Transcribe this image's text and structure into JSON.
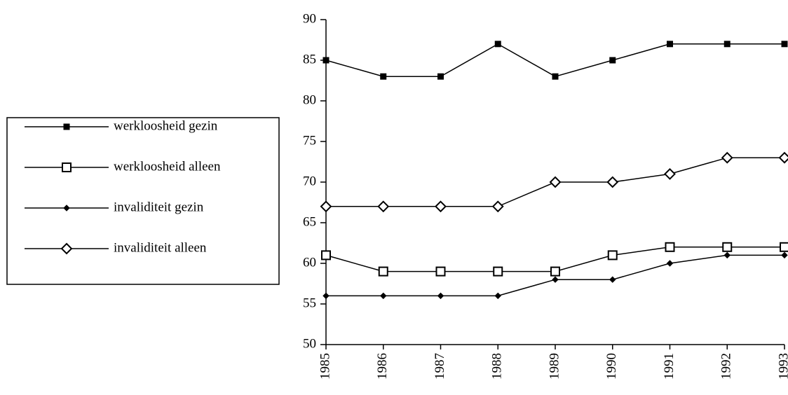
{
  "chart_data": {
    "type": "line",
    "categories": [
      "1985",
      "1986",
      "1987",
      "1988",
      "1989",
      "1990",
      "1991",
      "1992",
      "1993"
    ],
    "series": [
      {
        "name": "werkloosheid gezin",
        "color": "#000000",
        "marker": "square-filled",
        "values": [
          85,
          83,
          83,
          87,
          83,
          85,
          87,
          87,
          87
        ]
      },
      {
        "name": "werkloosheid alleen",
        "color": "#000000",
        "marker": "square-open",
        "values": [
          61,
          59,
          59,
          59,
          59,
          61,
          62,
          62,
          62
        ]
      },
      {
        "name": "invaliditeit gezin",
        "color": "#000000",
        "marker": "diamond-filled",
        "values": [
          56,
          56,
          56,
          56,
          58,
          58,
          60,
          61,
          61
        ]
      },
      {
        "name": "invaliditeit alleen",
        "color": "#000000",
        "marker": "diamond-open",
        "values": [
          67,
          67,
          67,
          67,
          70,
          70,
          71,
          73,
          73
        ]
      }
    ],
    "ylim": [
      50,
      90
    ],
    "yticks": [
      50,
      55,
      60,
      65,
      70,
      75,
      80,
      85,
      90
    ],
    "grid": false,
    "legend": "left"
  }
}
